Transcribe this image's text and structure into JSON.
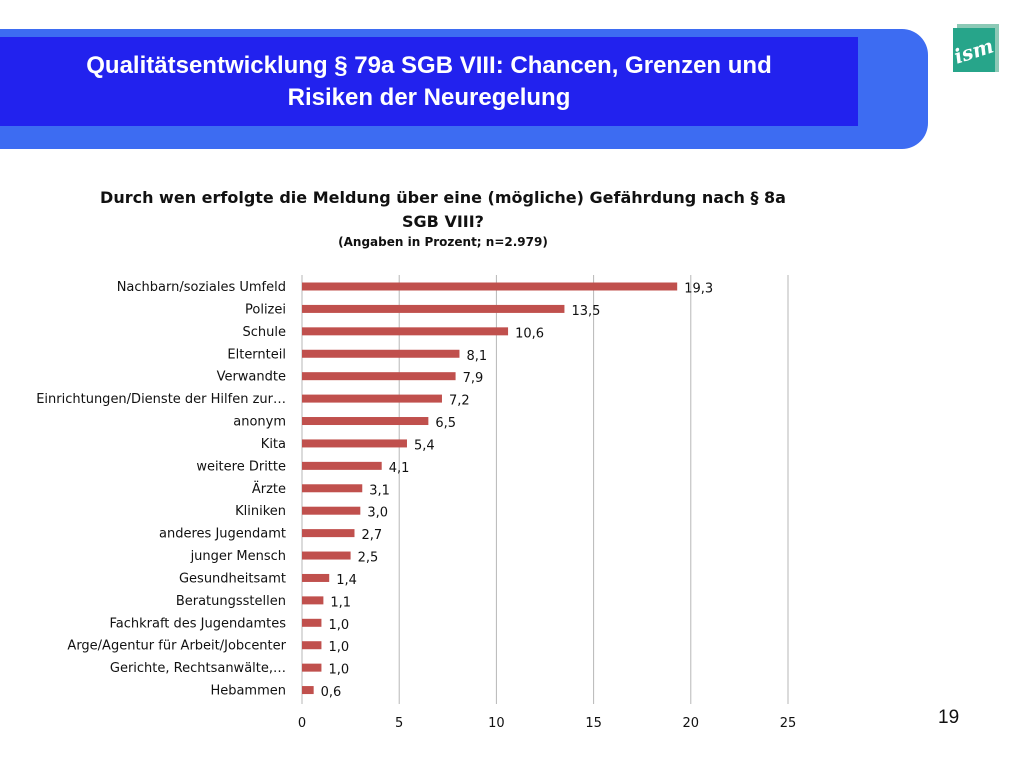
{
  "header": {
    "title_line1": "Qualitätsentwicklung § 79a SGB VIII: Chancen, Grenzen und",
    "title_line2": "Risiken der Neuregelung"
  },
  "logo": {
    "text": "ism",
    "icon": "ism-logo"
  },
  "page_number": "19",
  "colors": {
    "header_front": "#2222ee",
    "header_back": "#3d6cf2",
    "bar": "#c0504d",
    "logo_green": "#27a58a"
  },
  "chart_data": {
    "type": "bar",
    "orientation": "horizontal",
    "title_line1": "Durch wen erfolgte die Meldung über eine (mögliche) Gefährdung nach § 8a",
    "title_line2": "SGB VIII?",
    "subtitle": "(Angaben in Prozent; n=2.979)",
    "categories": [
      "Nachbarn/soziales Umfeld",
      "Polizei",
      "Schule",
      "Elternteil",
      "Verwandte",
      "Einrichtungen/Dienste der Hilfen zur…",
      "anonym",
      "Kita",
      "weitere Dritte",
      "Ärzte",
      "Kliniken",
      "anderes Jugendamt",
      "junger Mensch",
      "Gesundheitsamt",
      "Beratungsstellen",
      "Fachkraft des Jugendamtes",
      "Arge/Agentur für Arbeit/Jobcenter",
      "Gerichte, Rechtsanwälte,…",
      "Hebammen"
    ],
    "values": [
      19.3,
      13.5,
      10.6,
      8.1,
      7.9,
      7.2,
      6.5,
      5.4,
      4.1,
      3.1,
      3.0,
      2.7,
      2.5,
      1.4,
      1.1,
      1.0,
      1.0,
      1.0,
      0.6
    ],
    "value_labels": [
      "19,3",
      "13,5",
      "10,6",
      "8,1",
      "7,9",
      "7,2",
      "6,5",
      "5,4",
      "4,1",
      "3,1",
      "3,0",
      "2,7",
      "2,5",
      "1,4",
      "1,1",
      "1,0",
      "1,0",
      "1,0",
      "0,6"
    ],
    "xlim": [
      0,
      25
    ],
    "xticks": [
      0,
      5,
      10,
      15,
      20,
      25
    ],
    "grid": true,
    "legend": "none"
  }
}
